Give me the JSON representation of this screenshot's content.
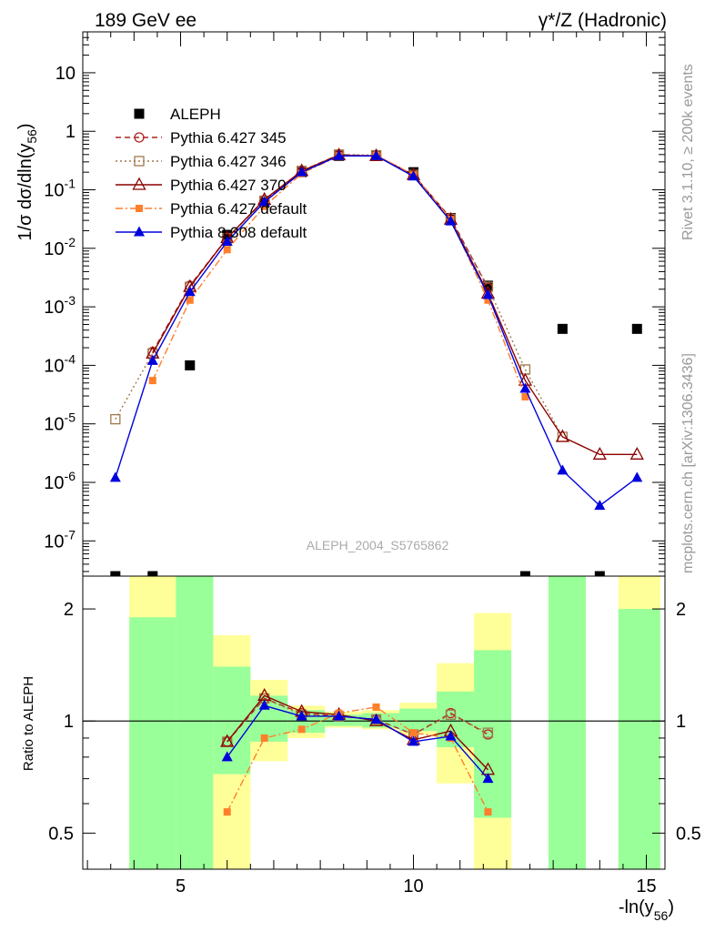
{
  "header": {
    "left": "189 GeV ee",
    "right": "γ*/Z (Hadronic)"
  },
  "side_labels": {
    "rivet": "Rivet 3.1.10, ≥ 200k events",
    "mcplots": "mcplots.cern.ch [arXiv:1306.3436]"
  },
  "watermark": "ALEPH_2004_S5765862",
  "chart_data": [
    {
      "type": "scatter",
      "title": "",
      "xlabel": "-ln(y56)",
      "ylabel": "1/σ dσ/dln(y56)",
      "yscale": "log",
      "xlim": [
        2.9,
        15.4
      ],
      "ylim": [
        2.5e-08,
        50
      ],
      "xticks": [
        5,
        10,
        15
      ],
      "yticks": [
        "10^-7",
        "10^-6",
        "10^-5",
        "10^-4",
        "10^-3",
        "10^-2",
        "10^-1",
        "1",
        "10"
      ],
      "legend_position": "upper-left",
      "series": [
        {
          "name": "ALEPH",
          "color": "#000000",
          "marker": "filled-square",
          "line": "none",
          "x": [
            3.6,
            4.4,
            5.2,
            6.0,
            6.8,
            7.6,
            8.4,
            9.2,
            10.0,
            10.8,
            11.6,
            12.4,
            13.2,
            14.0,
            14.8
          ],
          "y": [
            2.5e-08,
            2.5e-08,
            0.0001,
            0.017,
            0.06,
            0.2,
            0.38,
            0.38,
            0.2,
            0.033,
            0.0023,
            2.5e-08,
            0.00042,
            2.5e-08,
            0.00042
          ]
        },
        {
          "name": "Pythia 6.427 345",
          "color": "#b22222",
          "marker": "open-circle",
          "line": "dashed",
          "x": [
            4.4,
            5.2,
            6.0,
            6.8,
            7.6,
            8.4,
            9.2,
            10.0,
            10.8,
            11.6
          ],
          "y": [
            0.00017,
            0.0023,
            0.015,
            0.066,
            0.21,
            0.4,
            0.38,
            0.18,
            0.033,
            0.0021
          ]
        },
        {
          "name": "Pythia 6.427 346",
          "color": "#a0784a",
          "marker": "open-square",
          "line": "dotted",
          "x": [
            3.6,
            4.4,
            5.2,
            6.0,
            6.8,
            7.6,
            8.4,
            9.2,
            10.0,
            10.8,
            11.6,
            12.4,
            13.2
          ],
          "y": [
            1.2e-05,
            0.00016,
            0.0022,
            0.015,
            0.065,
            0.21,
            0.4,
            0.39,
            0.18,
            0.032,
            0.0022,
            8.5e-05,
            6e-06
          ]
        },
        {
          "name": "Pythia 6.427 370",
          "color": "#8b0000",
          "marker": "open-triangle",
          "line": "solid",
          "x": [
            4.4,
            5.2,
            6.0,
            6.8,
            7.6,
            8.4,
            9.2,
            10.0,
            10.8,
            11.6,
            12.4,
            13.2,
            14.0,
            14.8
          ],
          "y": [
            0.00016,
            0.0022,
            0.015,
            0.068,
            0.21,
            0.39,
            0.38,
            0.18,
            0.031,
            0.0017,
            5.5e-05,
            6e-06,
            3e-06,
            3e-06
          ]
        },
        {
          "name": "Pythia 6.427 default",
          "color": "#ff7f2a",
          "marker": "filled-square-small",
          "line": "dash-dot",
          "x": [
            4.4,
            5.2,
            6.0,
            6.8,
            7.6,
            8.4,
            9.2,
            10.0,
            10.8,
            11.6,
            12.4
          ],
          "y": [
            5.5e-05,
            0.0013,
            0.0095,
            0.052,
            0.19,
            0.38,
            0.39,
            0.18,
            0.031,
            0.0013,
            2.9e-05
          ]
        },
        {
          "name": "Pythia 8.308 default",
          "color": "#0000dd",
          "marker": "filled-triangle",
          "line": "solid",
          "x": [
            3.6,
            4.4,
            5.2,
            6.0,
            6.8,
            7.6,
            8.4,
            9.2,
            10.0,
            10.8,
            11.6,
            12.4,
            13.2,
            14.0,
            14.8
          ],
          "y": [
            1.2e-06,
            0.00012,
            0.0018,
            0.013,
            0.062,
            0.2,
            0.38,
            0.38,
            0.17,
            0.029,
            0.0016,
            4e-05,
            1.6e-06,
            4e-07,
            1.2e-06
          ]
        }
      ]
    },
    {
      "type": "scatter",
      "title": "",
      "xlabel": "-ln(y56)",
      "ylabel": "Ratio to ALEPH",
      "yscale": "log",
      "xlim": [
        2.9,
        15.4
      ],
      "ylim": [
        0.4,
        2.45
      ],
      "yticks": [
        0.5,
        1,
        2
      ],
      "xticks": [
        5,
        10,
        15
      ],
      "uncertainty_bands": {
        "x_bins": [
          [
            3.9,
            4.9
          ],
          [
            4.9,
            5.7
          ],
          [
            5.7,
            6.5
          ],
          [
            6.5,
            7.3
          ],
          [
            7.3,
            8.1
          ],
          [
            8.1,
            8.9
          ],
          [
            8.9,
            9.7
          ],
          [
            9.7,
            10.5
          ],
          [
            10.5,
            11.3
          ],
          [
            11.3,
            12.1
          ],
          [
            12.9,
            13.7
          ],
          [
            14.4,
            15.3
          ]
        ],
        "green": [
          [
            0.35,
            1.9
          ],
          [
            0.35,
            2.45
          ],
          [
            0.72,
            1.4
          ],
          [
            0.88,
            1.17
          ],
          [
            0.93,
            1.07
          ],
          [
            0.97,
            1.04
          ],
          [
            0.96,
            1.05
          ],
          [
            0.94,
            1.08
          ],
          [
            0.85,
            1.2
          ],
          [
            0.55,
            1.55
          ],
          [
            0.35,
            2.45
          ],
          [
            0.35,
            2.0
          ]
        ],
        "yellow": [
          [
            0.35,
            2.45
          ],
          [
            0.35,
            2.45
          ],
          [
            0.35,
            1.7
          ],
          [
            0.78,
            1.29
          ],
          [
            0.9,
            1.1
          ],
          [
            0.96,
            1.06
          ],
          [
            0.95,
            1.07
          ],
          [
            0.92,
            1.12
          ],
          [
            0.68,
            1.43
          ],
          [
            0.35,
            1.95
          ],
          [
            0.35,
            2.45
          ],
          [
            0.35,
            2.45
          ]
        ],
        "green_color": "#99ff99",
        "yellow_color": "#ffff99"
      },
      "series": [
        {
          "name": "Pythia 6.427 345",
          "x": [
            6.0,
            6.8,
            7.6,
            8.4,
            9.2,
            10.0,
            10.8,
            11.6
          ],
          "y": [
            0.88,
            1.15,
            1.05,
            1.03,
            1.01,
            0.92,
            1.05,
            0.92
          ]
        },
        {
          "name": "Pythia 6.427 346",
          "x": [
            6.0,
            6.8,
            7.6,
            8.4,
            9.2,
            10.0,
            10.8,
            11.6
          ],
          "y": [
            0.88,
            1.15,
            1.04,
            1.03,
            1.01,
            0.92,
            1.04,
            0.93
          ]
        },
        {
          "name": "Pythia 6.427 370",
          "x": [
            6.0,
            6.8,
            7.6,
            8.4,
            9.2,
            10.0,
            10.8,
            11.6
          ],
          "y": [
            0.88,
            1.17,
            1.06,
            1.04,
            1.0,
            0.89,
            0.94,
            0.74
          ]
        },
        {
          "name": "Pythia 6.427 default",
          "x": [
            6.0,
            6.8,
            7.6,
            8.4,
            9.2,
            10.0,
            10.8,
            11.6
          ],
          "y": [
            0.57,
            0.9,
            0.95,
            1.05,
            1.09,
            0.93,
            0.9,
            0.57
          ]
        },
        {
          "name": "Pythia 8.308 default",
          "x": [
            6.0,
            6.8,
            7.6,
            8.4,
            9.2,
            10.0,
            10.8,
            11.6
          ],
          "y": [
            0.8,
            1.1,
            1.03,
            1.03,
            1.01,
            0.88,
            0.91,
            0.7
          ]
        }
      ]
    }
  ]
}
